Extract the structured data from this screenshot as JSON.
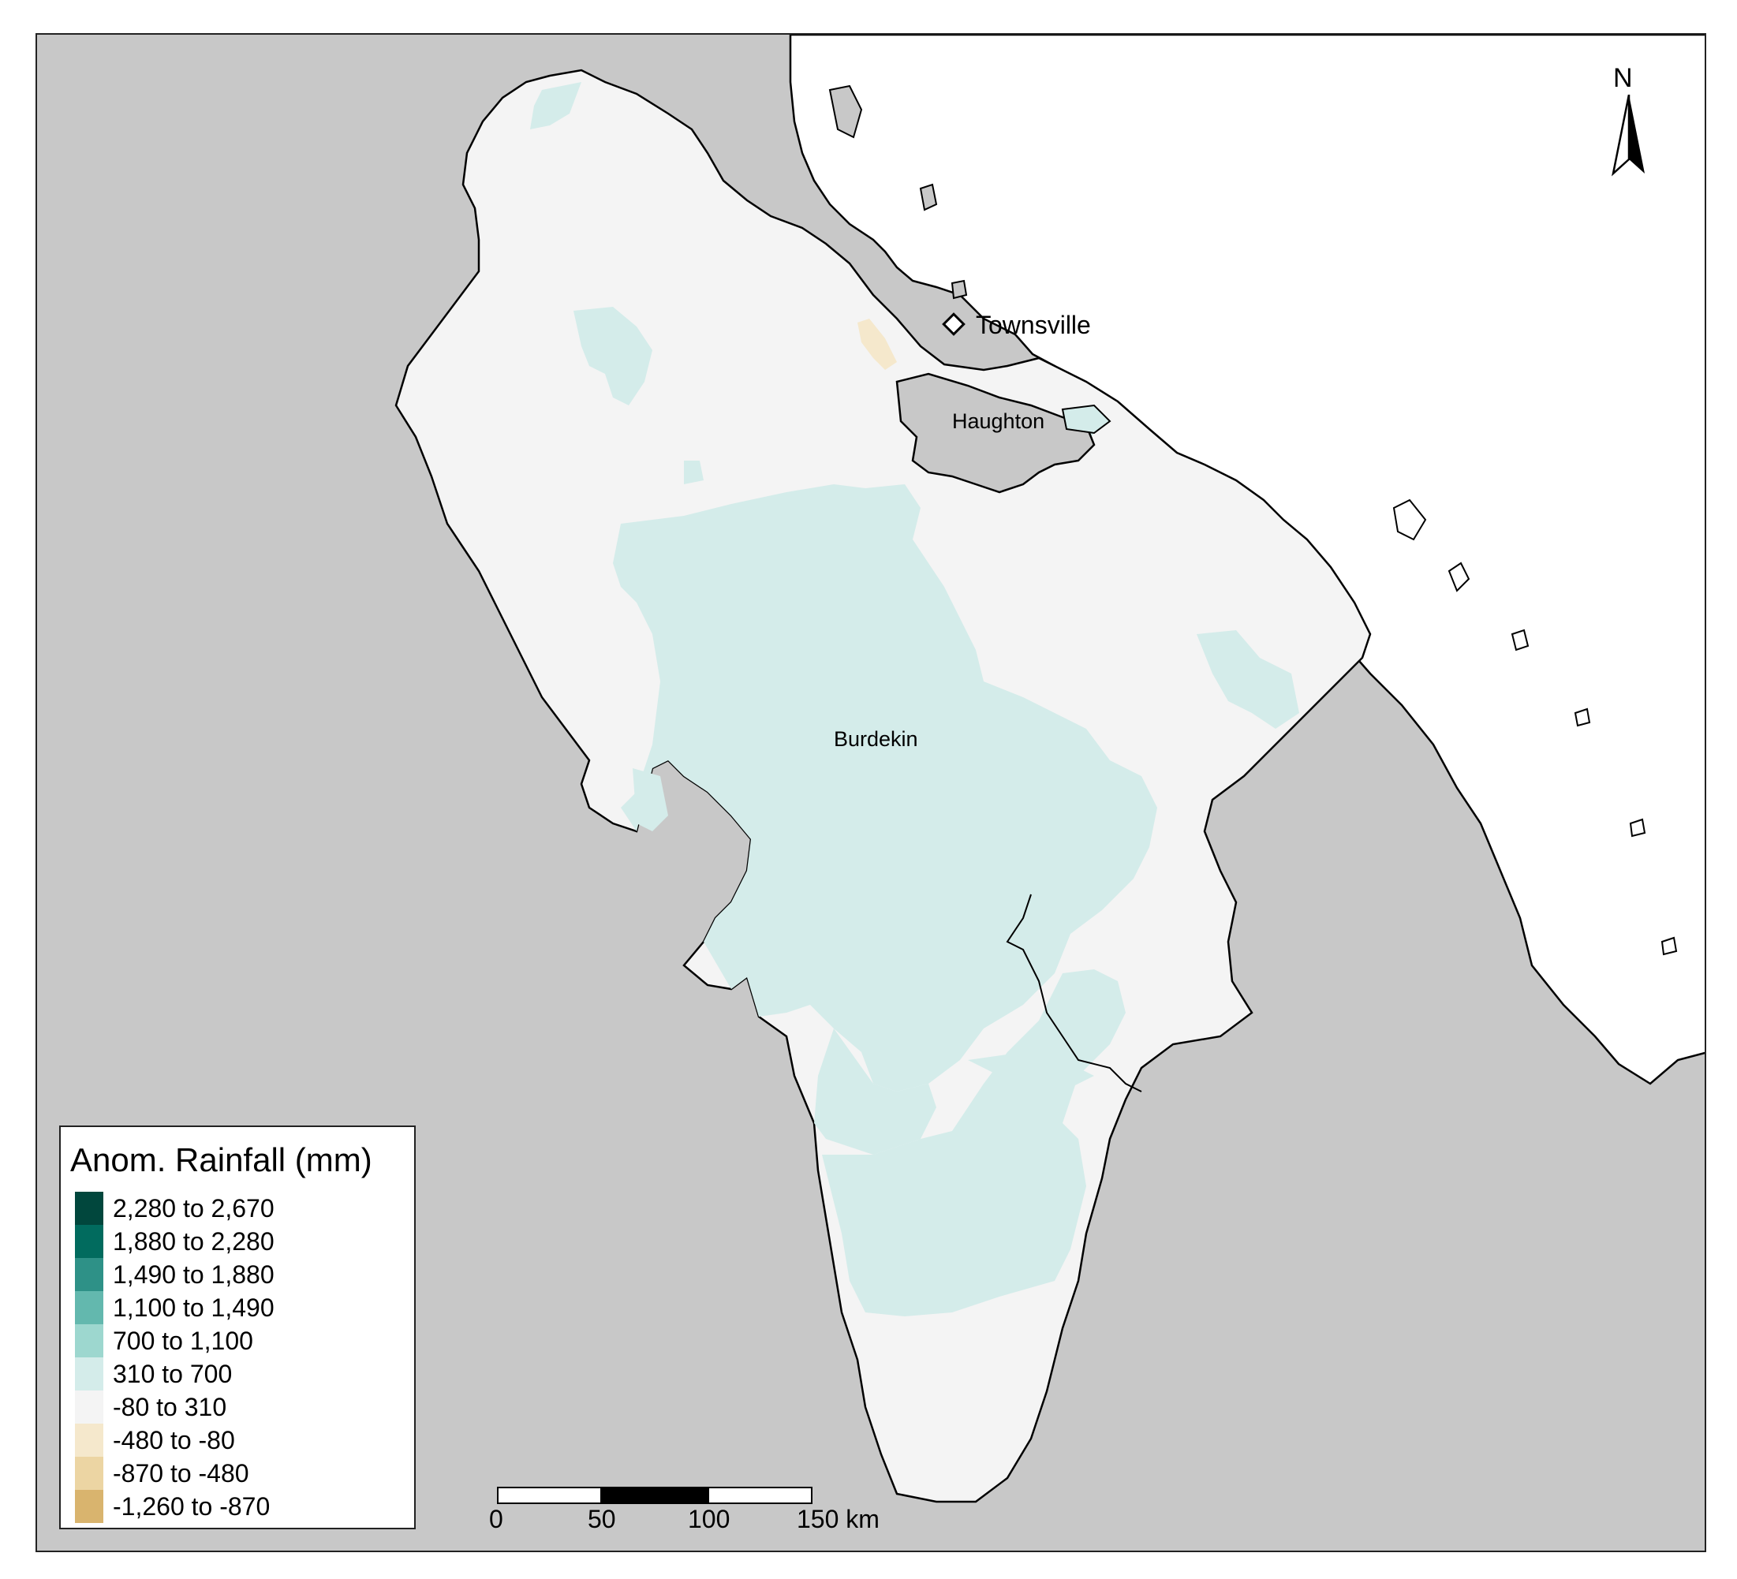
{
  "map": {
    "colors": {
      "background": "#c8c8c8",
      "sea": "#ffffff",
      "outline": "#000000",
      "class_neutral": "#f4f4f4",
      "class_310_700": "#d4ecea"
    },
    "labels": {
      "townsville": "Townsville",
      "haughton": "Haughton",
      "burdekin": "Burdekin"
    },
    "north_label": "N"
  },
  "legend": {
    "title": "Anom. Rainfall (mm)",
    "items": [
      {
        "label": "2,280 to 2,670",
        "color": "#01473d"
      },
      {
        "label": "1,880 to 2,280",
        "color": "#016b5e"
      },
      {
        "label": "1,490 to 1,880",
        "color": "#2e9187"
      },
      {
        "label": "1,100 to 1,490",
        "color": "#63b8ae"
      },
      {
        "label": "700 to 1,100",
        "color": "#9dd7cf"
      },
      {
        "label": "310 to 700",
        "color": "#d4ecea"
      },
      {
        "label": "-80 to 310",
        "color": "#f4f4f4"
      },
      {
        "label": "-480 to -80",
        "color": "#f5e8cc"
      },
      {
        "label": "-870 to -480",
        "color": "#ecd5a3"
      },
      {
        "label": "-1,260 to -870",
        "color": "#d9b46e"
      }
    ]
  },
  "scale_bar": {
    "ticks": [
      "0",
      "50",
      "100",
      "150 km"
    ]
  }
}
